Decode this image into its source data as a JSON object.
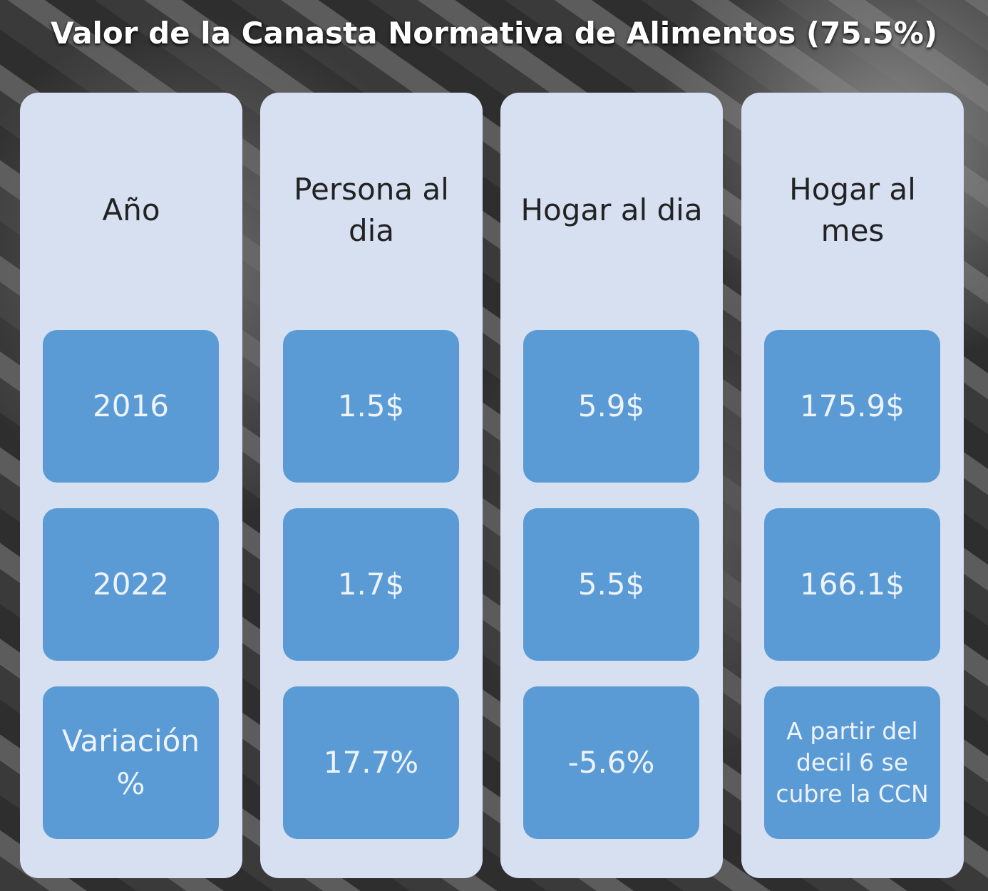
{
  "title": "Valor de la Canasta Normativa de Alimentos (75.5%)",
  "columns": [
    {
      "header": "Año",
      "cells": [
        "2016",
        "2022",
        "Variación %"
      ]
    },
    {
      "header": "Persona al dia",
      "cells": [
        "1.5$",
        "1.7$",
        "17.7%"
      ]
    },
    {
      "header": "Hogar al dia",
      "cells": [
        "5.9$",
        "5.5$",
        "-5.6%"
      ]
    },
    {
      "header": "Hogar al mes",
      "cells": [
        "175.9$",
        "166.1$",
        "A partir del decil 6 se cubre la CCN"
      ]
    }
  ]
}
